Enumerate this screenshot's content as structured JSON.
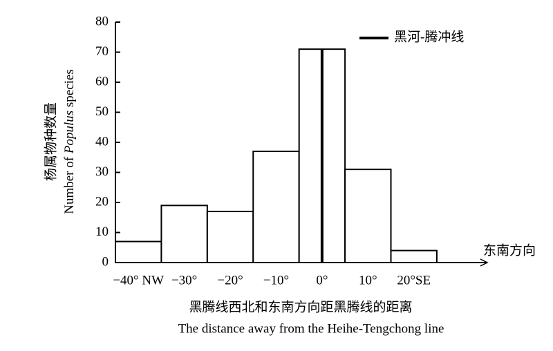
{
  "chart_data": {
    "type": "histogram",
    "bins": [
      -45,
      -35,
      -25,
      -15,
      -5,
      5,
      15,
      25
    ],
    "values": [
      7,
      19,
      17,
      37,
      71,
      31,
      4
    ],
    "color": "#ffffff",
    "edgecolor": "#000000",
    "xlim": [
      -45,
      36
    ],
    "ylim": [
      0,
      80
    ],
    "yticks": [
      0,
      10,
      20,
      30,
      40,
      50,
      60,
      70,
      80
    ],
    "xticks": [
      {
        "value": -40,
        "label": "−40° NW"
      },
      {
        "value": -30,
        "label": "−30°"
      },
      {
        "value": -20,
        "label": "−20°"
      },
      {
        "value": -10,
        "label": "−10°"
      },
      {
        "value": 0,
        "label": "0°"
      },
      {
        "value": 10,
        "label": "10°"
      },
      {
        "value": 20,
        "label": "20°SE"
      }
    ],
    "vline": {
      "name": "黑河-腾冲线",
      "x": 0,
      "color": "#000000"
    },
    "legend": "upper right",
    "arrow_label": "东南方向",
    "ylabel": "杨属物种数量",
    "ylabel_en": [
      "Number of ",
      "Populus",
      " species"
    ],
    "xlabel": "黑腾线西北和东南方向距黑腾线的距离",
    "xlabel_en": "The distance away from the Heihe-Tengchong line"
  }
}
